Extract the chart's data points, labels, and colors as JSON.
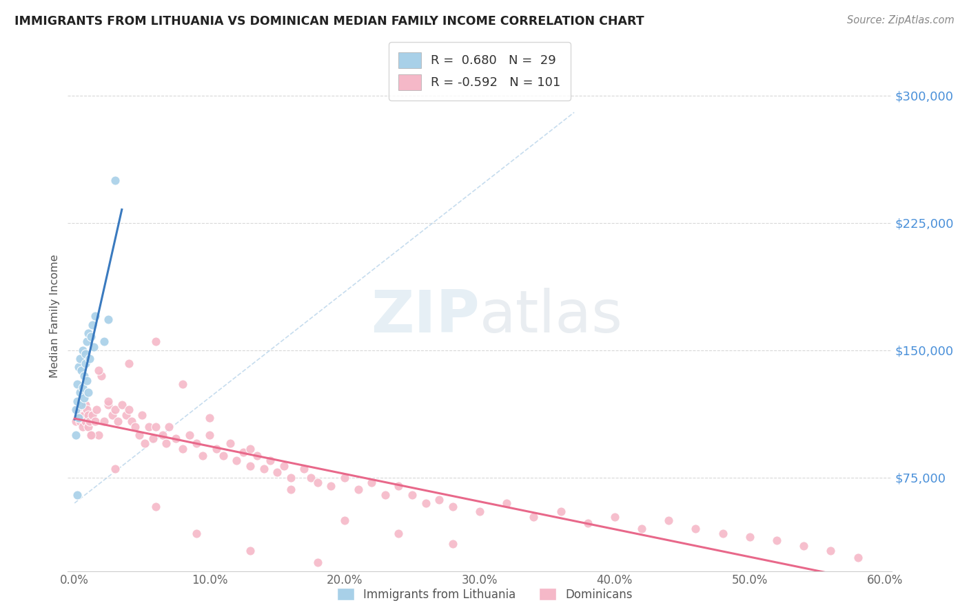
{
  "title": "IMMIGRANTS FROM LITHUANIA VS DOMINICAN MEDIAN FAMILY INCOME CORRELATION CHART",
  "source": "Source: ZipAtlas.com",
  "ylabel": "Median Family Income",
  "xlim": [
    -0.005,
    0.605
  ],
  "ylim": [
    20000,
    320000
  ],
  "yticks": [
    75000,
    150000,
    225000,
    300000
  ],
  "ytick_labels": [
    "$75,000",
    "$150,000",
    "$225,000",
    "$300,000"
  ],
  "xticks": [
    0.0,
    0.1,
    0.2,
    0.3,
    0.4,
    0.5,
    0.6
  ],
  "xtick_labels": [
    "0.0%",
    "10.0%",
    "20.0%",
    "30.0%",
    "40.0%",
    "50.0%",
    "60.0%"
  ],
  "blue_R": "0.680",
  "blue_N": 29,
  "pink_R": "-0.592",
  "pink_N": 101,
  "blue_color": "#a8d0e8",
  "pink_color": "#f5b8c8",
  "blue_line_color": "#3a7abf",
  "pink_line_color": "#e8688a",
  "blue_scatter_x": [
    0.001,
    0.001,
    0.002,
    0.002,
    0.003,
    0.003,
    0.004,
    0.004,
    0.005,
    0.005,
    0.006,
    0.006,
    0.007,
    0.007,
    0.008,
    0.008,
    0.009,
    0.009,
    0.01,
    0.01,
    0.011,
    0.012,
    0.013,
    0.014,
    0.015,
    0.022,
    0.025,
    0.03,
    0.002
  ],
  "blue_scatter_y": [
    100000,
    115000,
    120000,
    130000,
    110000,
    140000,
    125000,
    145000,
    118000,
    138000,
    128000,
    150000,
    135000,
    122000,
    148000,
    142000,
    155000,
    132000,
    160000,
    125000,
    145000,
    158000,
    165000,
    152000,
    170000,
    155000,
    168000,
    250000,
    65000
  ],
  "pink_scatter_x": [
    0.001,
    0.002,
    0.003,
    0.004,
    0.005,
    0.006,
    0.007,
    0.008,
    0.008,
    0.009,
    0.01,
    0.01,
    0.011,
    0.012,
    0.013,
    0.015,
    0.016,
    0.018,
    0.02,
    0.022,
    0.025,
    0.028,
    0.03,
    0.032,
    0.035,
    0.038,
    0.04,
    0.042,
    0.045,
    0.048,
    0.05,
    0.052,
    0.055,
    0.058,
    0.06,
    0.065,
    0.068,
    0.07,
    0.075,
    0.08,
    0.085,
    0.09,
    0.095,
    0.1,
    0.105,
    0.11,
    0.115,
    0.12,
    0.125,
    0.13,
    0.135,
    0.14,
    0.145,
    0.15,
    0.155,
    0.16,
    0.17,
    0.175,
    0.18,
    0.19,
    0.2,
    0.21,
    0.22,
    0.23,
    0.24,
    0.25,
    0.26,
    0.27,
    0.28,
    0.3,
    0.32,
    0.34,
    0.36,
    0.38,
    0.4,
    0.42,
    0.44,
    0.46,
    0.48,
    0.5,
    0.52,
    0.54,
    0.56,
    0.58,
    0.012,
    0.018,
    0.025,
    0.04,
    0.06,
    0.08,
    0.1,
    0.13,
    0.16,
    0.2,
    0.24,
    0.28,
    0.03,
    0.06,
    0.09,
    0.13,
    0.18
  ],
  "pink_scatter_y": [
    108000,
    115000,
    112000,
    108000,
    118000,
    105000,
    112000,
    108000,
    118000,
    115000,
    105000,
    112000,
    108000,
    100000,
    112000,
    108000,
    115000,
    100000,
    135000,
    108000,
    118000,
    112000,
    115000,
    108000,
    118000,
    112000,
    115000,
    108000,
    105000,
    100000,
    112000,
    95000,
    105000,
    98000,
    105000,
    100000,
    95000,
    105000,
    98000,
    92000,
    100000,
    95000,
    88000,
    100000,
    92000,
    88000,
    95000,
    85000,
    90000,
    82000,
    88000,
    80000,
    85000,
    78000,
    82000,
    75000,
    80000,
    75000,
    72000,
    70000,
    75000,
    68000,
    72000,
    65000,
    70000,
    65000,
    60000,
    62000,
    58000,
    55000,
    60000,
    52000,
    55000,
    48000,
    52000,
    45000,
    50000,
    45000,
    42000,
    40000,
    38000,
    35000,
    32000,
    28000,
    100000,
    138000,
    120000,
    142000,
    155000,
    130000,
    110000,
    92000,
    68000,
    50000,
    42000,
    36000,
    80000,
    58000,
    42000,
    32000,
    25000
  ],
  "background_color": "#ffffff",
  "grid_color": "#c8c8c8",
  "title_color": "#222222",
  "axis_label_color": "#555555",
  "ytick_color": "#4a90d9",
  "source_color": "#888888"
}
